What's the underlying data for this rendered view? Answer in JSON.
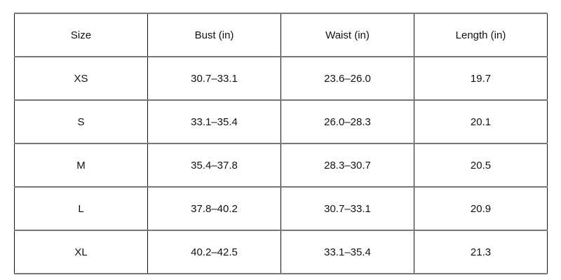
{
  "table": {
    "headers": [
      "Size",
      "Bust (in)",
      "Waist (in)",
      "Length (in)"
    ],
    "rows": [
      [
        "XS",
        "30.7–33.1",
        "23.6–26.0",
        "19.7"
      ],
      [
        "S",
        "33.1–35.4",
        "26.0–28.3",
        "20.1"
      ],
      [
        "M",
        "35.4–37.8",
        "28.3–30.7",
        "20.5"
      ],
      [
        "L",
        "37.8–40.2",
        "30.7–33.1",
        "20.9"
      ],
      [
        "XL",
        "40.2–42.5",
        "33.1–35.4",
        "21.3"
      ]
    ]
  }
}
